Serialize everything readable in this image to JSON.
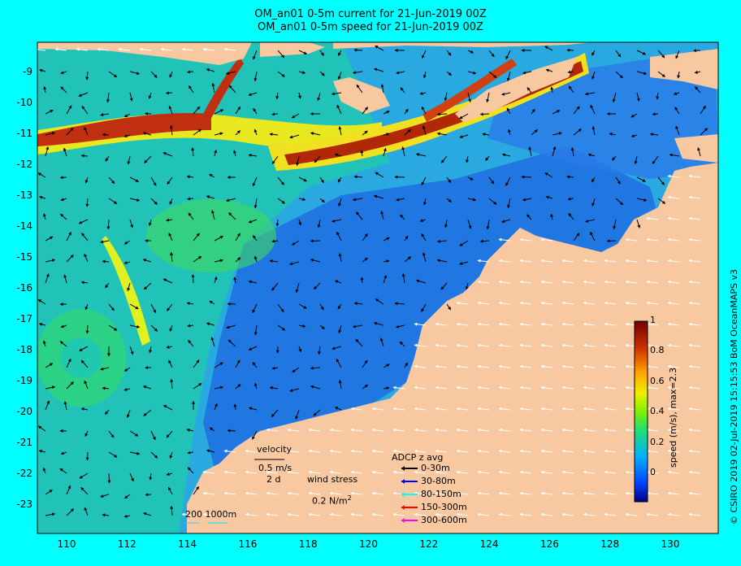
{
  "title_line1": "OM_an01 0-5m current for 21-Jun-2019 00Z",
  "title_line2": "OM_an01 0-5m speed for 21-Jun-2019 00Z",
  "lat_ticks": [
    "-9",
    "-10",
    "-11",
    "-12",
    "-13",
    "-14",
    "-15",
    "-16",
    "-17",
    "-18",
    "-19",
    "-20",
    "-21",
    "-22",
    "-23"
  ],
  "lon_ticks": [
    "110",
    "112",
    "114",
    "116",
    "118",
    "120",
    "122",
    "124",
    "126",
    "128",
    "130"
  ],
  "colorbar": {
    "ticks": [
      "1",
      "0.8",
      "0.6",
      "0.4",
      "0.2",
      "0"
    ],
    "label": "speed (m/s), max=2.3",
    "colors": [
      "#000080",
      "#0050ff",
      "#00c0ff",
      "#30e060",
      "#c8f000",
      "#ffff00",
      "#ff9000",
      "#c02000",
      "#700000"
    ]
  },
  "credit": "© CSIRO 2019    02-Jul-2019 15:15:53 BoM OceanMAPS v3",
  "velocity_legend": {
    "title": "velocity",
    "speed": "0.5 m/s",
    "days": "2 d"
  },
  "wind_legend": {
    "title": "wind stress",
    "value": "0.2 N/m",
    "sup": "2"
  },
  "adcp_legend": {
    "title": "ADCP z avg",
    "items": [
      {
        "label": "0-30m",
        "color": "#000000"
      },
      {
        "label": "30-80m",
        "color": "#0000ff"
      },
      {
        "label": "80-150m",
        "color": "#00ffff"
      },
      {
        "label": "150-300m",
        "color": "#ff0000"
      },
      {
        "label": "300-600m",
        "color": "#ff00ff"
      }
    ]
  },
  "bathy_legend": "200  1000m",
  "land_color": "#f8c8a0",
  "background_color": "#00ffff"
}
